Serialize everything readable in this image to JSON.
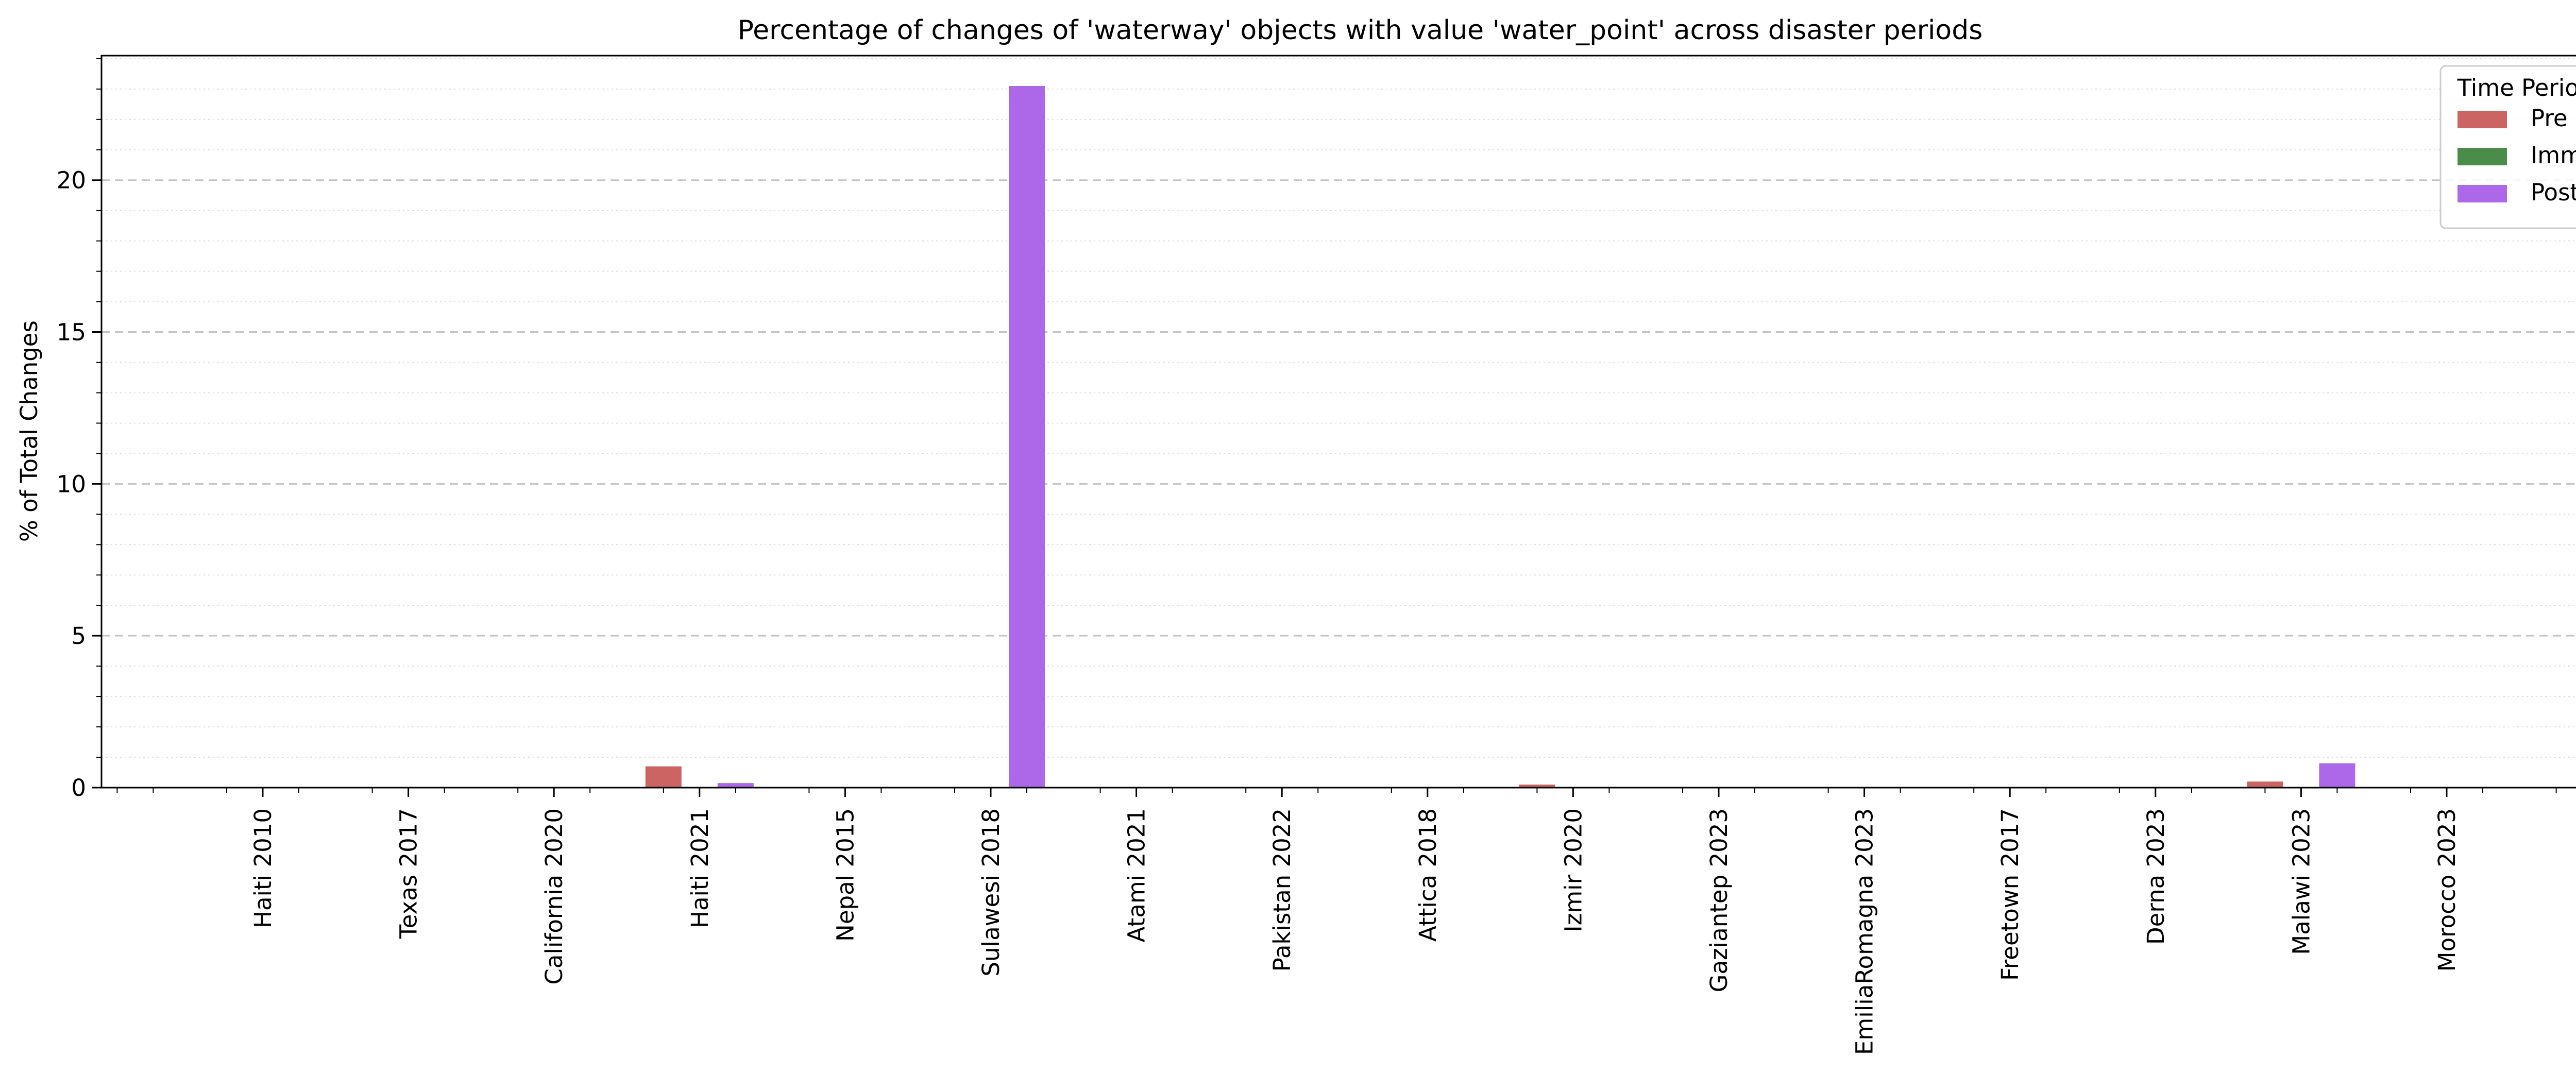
{
  "chart_data": {
    "type": "bar",
    "title": "Percentage of changes of 'waterway' objects with value 'water_point' across disaster periods",
    "xlabel": "",
    "ylabel": "% of Total Changes",
    "ylim": [
      0,
      24.1
    ],
    "yticks": [
      0,
      5,
      10,
      15,
      20
    ],
    "grid": {
      "major": "dashed",
      "minor": "dotted",
      "axis": "y"
    },
    "legend": {
      "title": "Time Period",
      "placement": "top-right"
    },
    "categories": [
      "Haiti 2010",
      "Texas 2017",
      "California 2020",
      "Haiti 2021",
      "Nepal 2015",
      "Sulawesi 2018",
      "Atami 2021",
      "Pakistan 2022",
      "Attica 2018",
      "Izmir 2020",
      "Gaziantep 2023",
      "EmiliaRomagna 2023",
      "Freetown 2017",
      "Derna 2023",
      "Malawi 2023",
      "Morocco 2023"
    ],
    "series": [
      {
        "name": "Pre",
        "color": "#cd6464",
        "values": [
          0,
          0,
          0,
          0.7,
          0,
          0,
          0,
          0,
          0,
          0.1,
          0,
          0,
          0,
          0,
          0.2,
          0
        ]
      },
      {
        "name": "Imm",
        "color": "#4a8c4a",
        "values": [
          0,
          0,
          0,
          0,
          0,
          0,
          0,
          0,
          0,
          0,
          0,
          0,
          0,
          0,
          0,
          0
        ]
      },
      {
        "name": "Post",
        "color": "#ac68e8",
        "values": [
          0,
          0,
          0,
          0.15,
          0,
          23.1,
          0,
          0,
          0,
          0,
          0,
          0,
          0,
          0,
          0.8,
          0
        ]
      }
    ]
  }
}
